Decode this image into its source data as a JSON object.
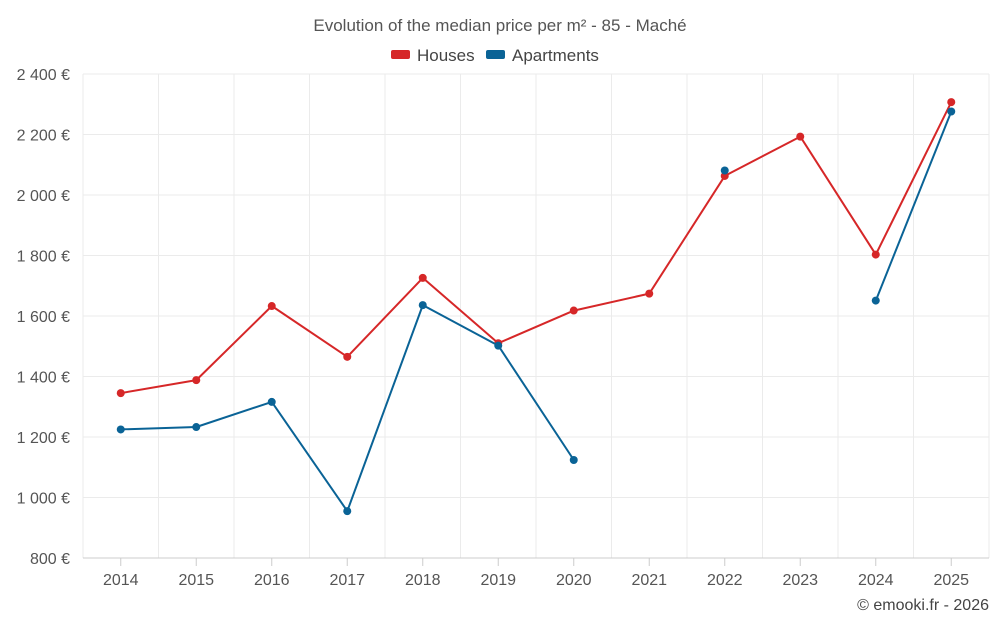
{
  "chart_data": {
    "type": "line",
    "title": "Evolution of the median price per m² - 85 - Maché",
    "xlabel": "",
    "ylabel": "",
    "categories": [
      "2014",
      "2015",
      "2016",
      "2017",
      "2018",
      "2019",
      "2020",
      "2021",
      "2022",
      "2023",
      "2024",
      "2025"
    ],
    "ylim": [
      800,
      2400
    ],
    "yticks": [
      800,
      1000,
      1200,
      1400,
      1600,
      1800,
      2000,
      2200,
      2400
    ],
    "ytick_labels": [
      "800 €",
      "1 000 €",
      "1 200 €",
      "1 400 €",
      "1 600 €",
      "1 800 €",
      "2 000 €",
      "2 200 €",
      "2 400 €"
    ],
    "grid": true,
    "legend_position": "top-center",
    "series": [
      {
        "name": "Houses",
        "color": "#d62728",
        "values": [
          1345,
          1388,
          1633,
          1465,
          1726,
          1510,
          1618,
          1674,
          2063,
          2193,
          1803,
          2307
        ]
      },
      {
        "name": "Apartments",
        "color": "#0a6396",
        "values": [
          1225,
          1233,
          1316,
          955,
          1636,
          1502,
          1124,
          null,
          2081,
          null,
          1651,
          2276
        ]
      }
    ],
    "credit": "© emooki.fr - 2026"
  }
}
